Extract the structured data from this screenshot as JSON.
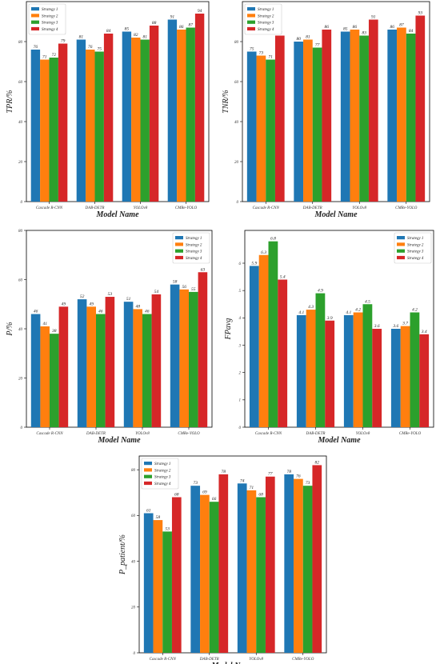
{
  "colors": {
    "s1": "#1f77b4",
    "s2": "#ff7f0e",
    "s3": "#2ca02c",
    "s4": "#d62728"
  },
  "chart_data": [
    {
      "type": "bar",
      "categories": [
        "Cascade R-CNN",
        "DAB-DETR",
        "YOLOv8",
        "CMRe-YOLO"
      ],
      "series": [
        {
          "name": "Strategy 1",
          "values": [
            76,
            81,
            85,
            91
          ]
        },
        {
          "name": "Strategy 2",
          "values": [
            71,
            76,
            82,
            86
          ]
        },
        {
          "name": "Strategy 3",
          "values": [
            72,
            75,
            81,
            87
          ]
        },
        {
          "name": "Strategy 4",
          "values": [
            79,
            84,
            88,
            94
          ]
        }
      ],
      "xlabel": "Model Name",
      "ylabel": "TPR/%",
      "ylim": [
        0,
        100
      ],
      "yticks": [
        0,
        20,
        40,
        60,
        80
      ],
      "legend": "top-left",
      "value_labels": true
    },
    {
      "type": "bar",
      "categories": [
        "Cascade R-CNN",
        "DAB-DETR",
        "YOLOv8",
        "CMRe-YOLO"
      ],
      "series": [
        {
          "name": "Strategy 1",
          "values": [
            75,
            80,
            85,
            86
          ]
        },
        {
          "name": "Strategy 2",
          "values": [
            73,
            81,
            86,
            87
          ]
        },
        {
          "name": "Strategy 3",
          "values": [
            71,
            77,
            83,
            84
          ]
        },
        {
          "name": "Strategy 4",
          "values": [
            83,
            86,
            91,
            93
          ]
        }
      ],
      "xlabel": "Model Name",
      "ylabel": "TNR/%",
      "ylim": [
        0,
        100
      ],
      "yticks": [
        0,
        20,
        40,
        60,
        80
      ],
      "legend": "top-left",
      "value_labels": true
    },
    {
      "type": "bar",
      "categories": [
        "Cascade R-CNN",
        "DAB-DETR",
        "YOLOv8",
        "CMRe-YOLO"
      ],
      "series": [
        {
          "name": "Strategy 1",
          "values": [
            46,
            52,
            51,
            58
          ]
        },
        {
          "name": "Strategy 2",
          "values": [
            41,
            49,
            48,
            56
          ]
        },
        {
          "name": "Strategy 3",
          "values": [
            38,
            46,
            46,
            55
          ]
        },
        {
          "name": "Strategy 4",
          "values": [
            49,
            53,
            54,
            63
          ]
        }
      ],
      "xlabel": "Model Name",
      "ylabel": "P/%",
      "ylim": [
        0,
        80
      ],
      "yticks": [
        0,
        20,
        40,
        60,
        80
      ],
      "legend": "top-right",
      "value_labels": true
    },
    {
      "type": "bar",
      "categories": [
        "Cascade R-CNN",
        "DAB-DETR",
        "YOLOv8",
        "CMRe-YOLO"
      ],
      "series": [
        {
          "name": "Strategy 1",
          "values": [
            5.9,
            4.1,
            4.1,
            3.6
          ]
        },
        {
          "name": "Strategy 2",
          "values": [
            6.3,
            4.3,
            4.2,
            3.7
          ]
        },
        {
          "name": "Strategy 3",
          "values": [
            6.8,
            4.9,
            4.5,
            4.2
          ]
        },
        {
          "name": "Strategy 4",
          "values": [
            5.4,
            3.9,
            3.6,
            3.4
          ]
        }
      ],
      "xlabel": "Model Name",
      "ylabel": "FPavg",
      "ylim": [
        0,
        7.2
      ],
      "yticks": [
        0,
        1,
        2,
        3,
        4,
        5,
        6
      ],
      "legend": "top-right",
      "value_labels": true
    },
    {
      "type": "bar",
      "categories": [
        "Cascade R-CNN",
        "DAB-DETR",
        "YOLOv8",
        "CMRe-YOLO"
      ],
      "series": [
        {
          "name": "Strategy 1",
          "values": [
            61,
            73,
            74,
            78
          ]
        },
        {
          "name": "Strategy 2",
          "values": [
            58,
            69,
            71,
            76
          ]
        },
        {
          "name": "Strategy 3",
          "values": [
            53,
            66,
            68,
            73
          ]
        },
        {
          "name": "Strategy 4",
          "values": [
            68,
            78,
            77,
            82
          ]
        }
      ],
      "xlabel": "Model Name",
      "ylabel": "P_patient/%",
      "ylim": [
        0,
        86
      ],
      "yticks": [
        0,
        20,
        40,
        60,
        80
      ],
      "legend": "top-left",
      "value_labels": true
    }
  ]
}
